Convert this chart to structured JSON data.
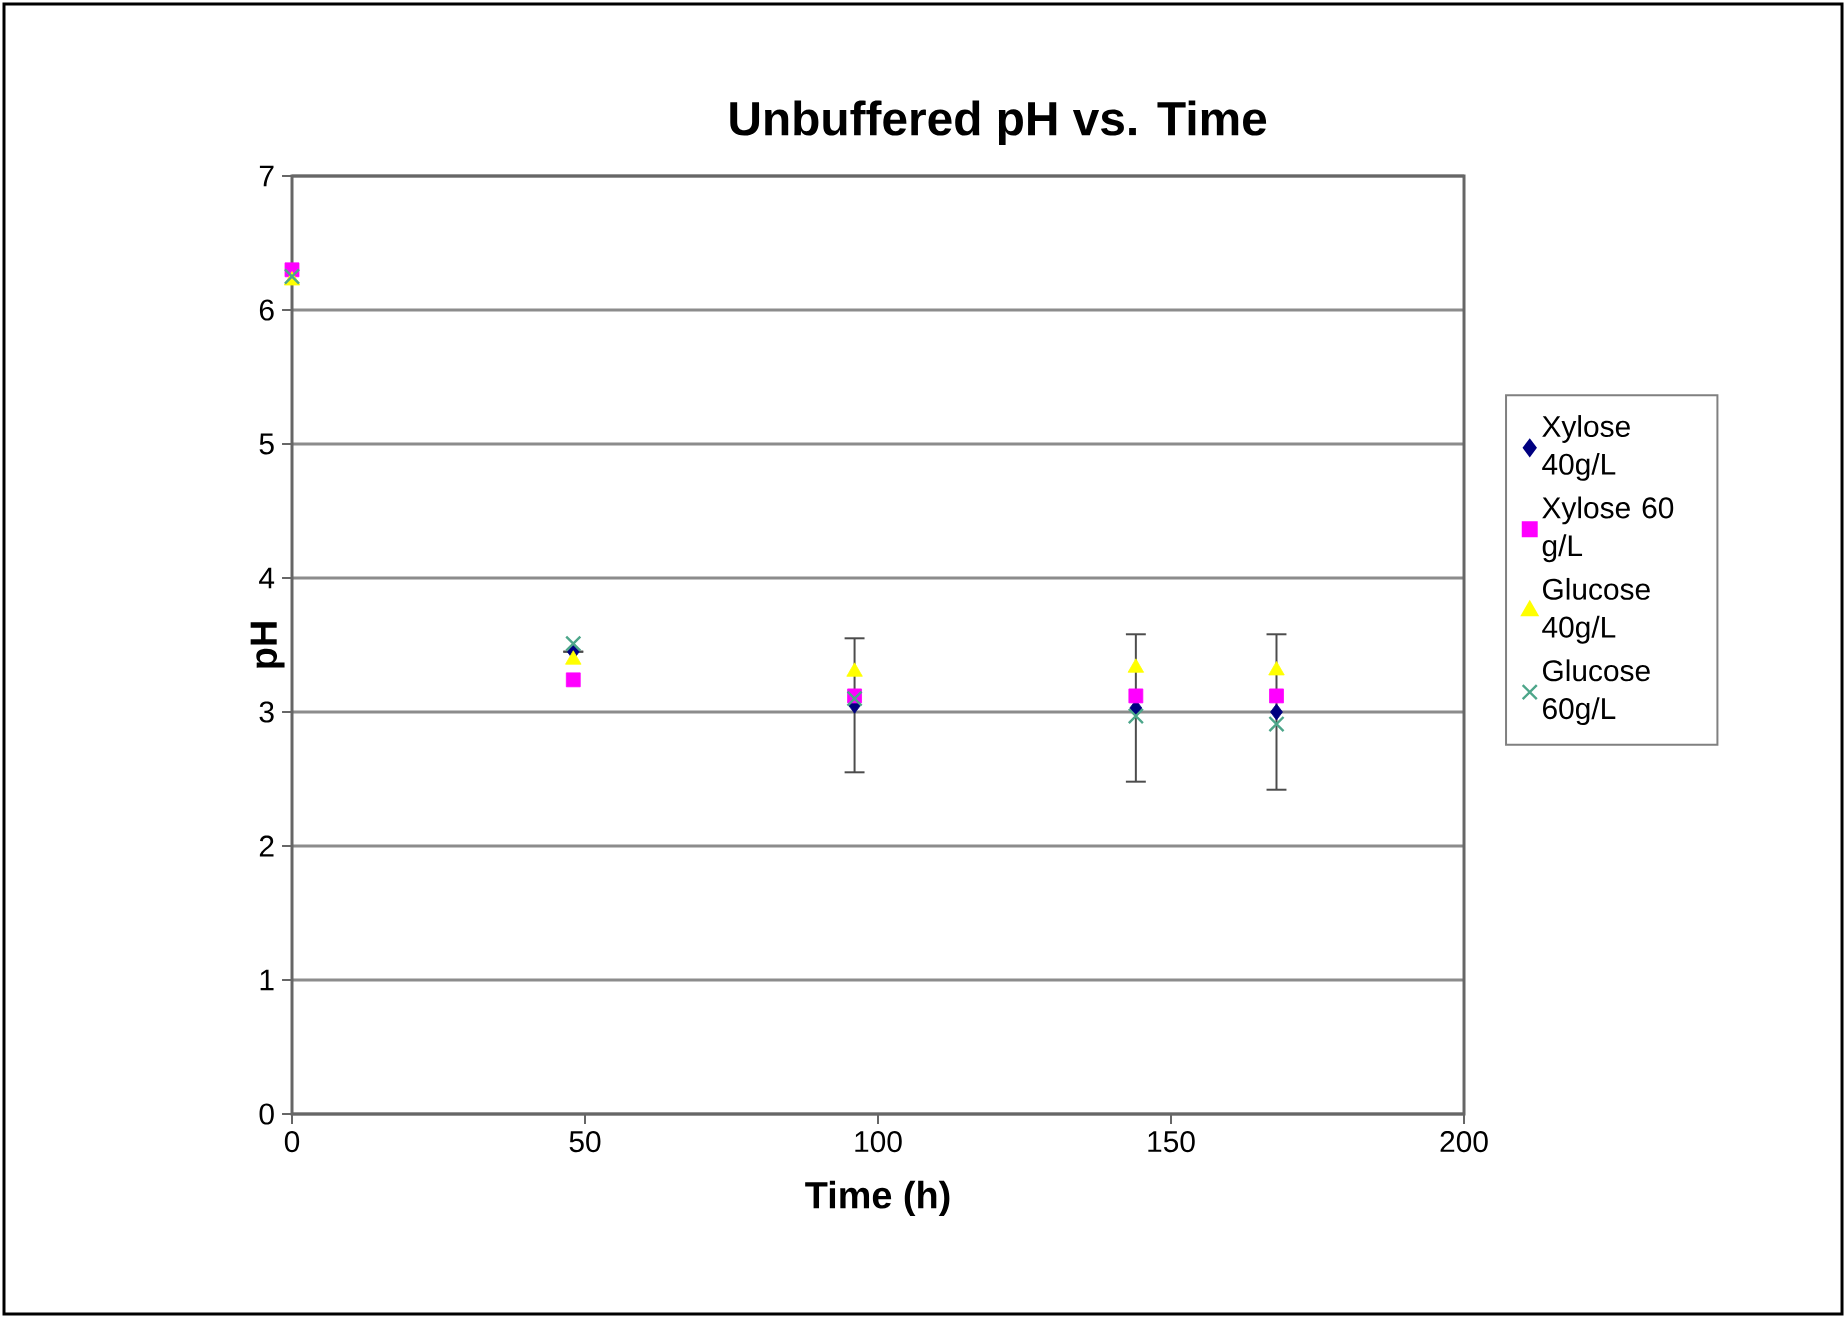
{
  "chart_data": {
    "type": "scatter",
    "title": "Unbuffered pH vs. Time",
    "xlabel": "Time (h)",
    "ylabel": "pH",
    "xlim": [
      0,
      200
    ],
    "xticks": [
      0,
      50,
      100,
      150,
      200
    ],
    "ylim": [
      0,
      7
    ],
    "yticks": [
      0,
      1,
      2,
      3,
      4,
      5,
      6,
      7
    ],
    "grid": "y",
    "legend": "right",
    "series": [
      {
        "name": "Xylose 40g/L",
        "color": "#000080",
        "marker": "diamond",
        "x": [
          48,
          96,
          144,
          168
        ],
        "values": [
          3.45,
          3.05,
          3.03,
          3.0
        ],
        "errors": [
          null,
          0.5,
          0.55,
          0.58
        ]
      },
      {
        "name": "Xylose 60 g/L",
        "color": "#ff00ff",
        "marker": "square",
        "x": [
          0,
          48,
          96,
          144,
          168
        ],
        "values": [
          6.3,
          3.24,
          3.12,
          3.12,
          3.12
        ]
      },
      {
        "name": "Glucose 40g/L",
        "color": "#ffff00",
        "marker": "triangle",
        "x": [
          0,
          48,
          96,
          144,
          168
        ],
        "values": [
          6.22,
          3.39,
          3.3,
          3.33,
          3.31
        ]
      },
      {
        "name": "Glucose 60g/L",
        "color": "#4da68a",
        "marker": "cross",
        "x": [
          0,
          48,
          96,
          144,
          168
        ],
        "values": [
          6.25,
          3.51,
          3.1,
          2.97,
          2.91
        ]
      }
    ]
  }
}
